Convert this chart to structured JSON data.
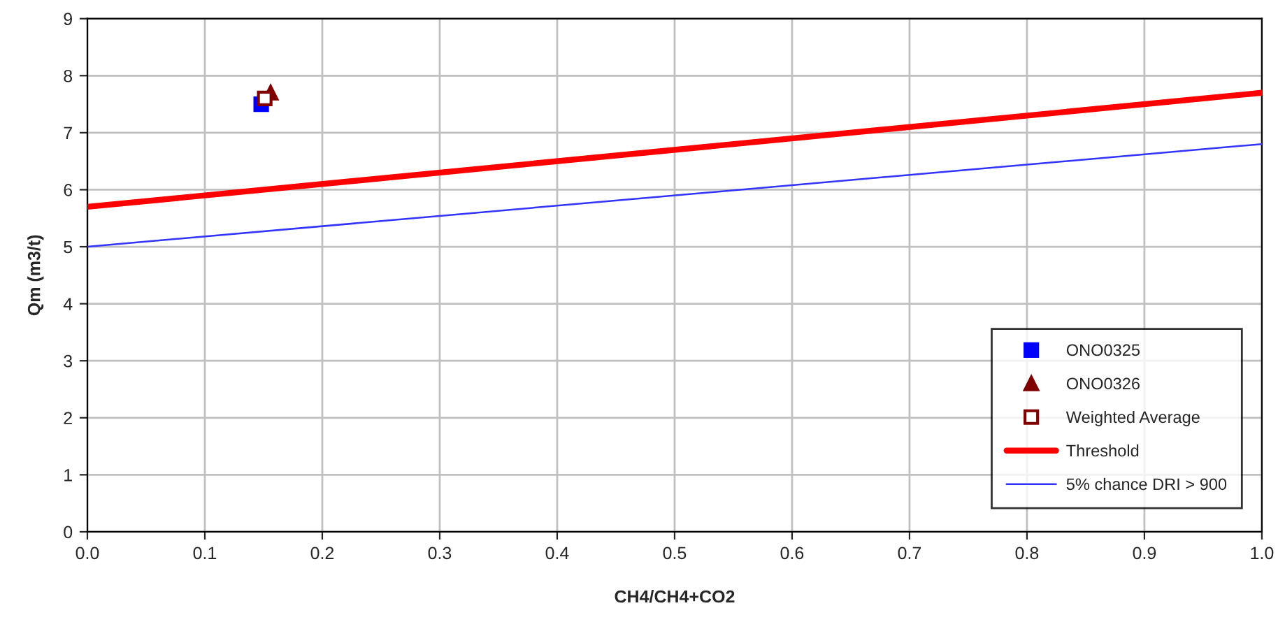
{
  "chart_data": {
    "type": "scatter",
    "xlabel": "CH4/CH4+CO2",
    "ylabel": "Qm (m3/t)",
    "xlim": [
      0,
      1
    ],
    "ylim": [
      0,
      9
    ],
    "xticks": [
      {
        "value": 0,
        "label": "0.0"
      },
      {
        "value": 0.1,
        "label": "0.1"
      },
      {
        "value": 0.2,
        "label": "0.2"
      },
      {
        "value": 0.3,
        "label": "0.3"
      },
      {
        "value": 0.4,
        "label": "0.4"
      },
      {
        "value": 0.5,
        "label": "0.5"
      },
      {
        "value": 0.6,
        "label": "0.6"
      },
      {
        "value": 0.7,
        "label": "0.7"
      },
      {
        "value": 0.8,
        "label": "0.8"
      },
      {
        "value": 0.9,
        "label": "0.9"
      },
      {
        "value": 1,
        "label": "1.0"
      }
    ],
    "yticks": [
      0,
      1,
      2,
      3,
      4,
      5,
      6,
      7,
      8,
      9
    ],
    "grid": true,
    "legend": "bottom right",
    "series": [
      {
        "name": "ONO0325",
        "type": "scatter",
        "marker": "square",
        "color": "#0000ff",
        "x": [
          0.148
        ],
        "values": [
          7.5
        ]
      },
      {
        "name": "ONO0326",
        "type": "scatter",
        "marker": "triangle",
        "color": "#800000",
        "x": [
          0.156
        ],
        "values": [
          7.7
        ]
      },
      {
        "name": "Weighted Average",
        "type": "scatter",
        "marker": "square_open",
        "color": "#800000",
        "x": [
          0.151
        ],
        "values": [
          7.6
        ]
      },
      {
        "name": "Threshold",
        "type": "line",
        "marker": "none",
        "color": "#ff0000",
        "x": [
          0,
          1
        ],
        "values": [
          5.7,
          7.7
        ]
      },
      {
        "name": "5% chance DRI > 900",
        "type": "line",
        "marker": "none",
        "color": "#3333ff",
        "x": [
          0,
          1
        ],
        "values": [
          5.0,
          6.8
        ]
      }
    ]
  }
}
